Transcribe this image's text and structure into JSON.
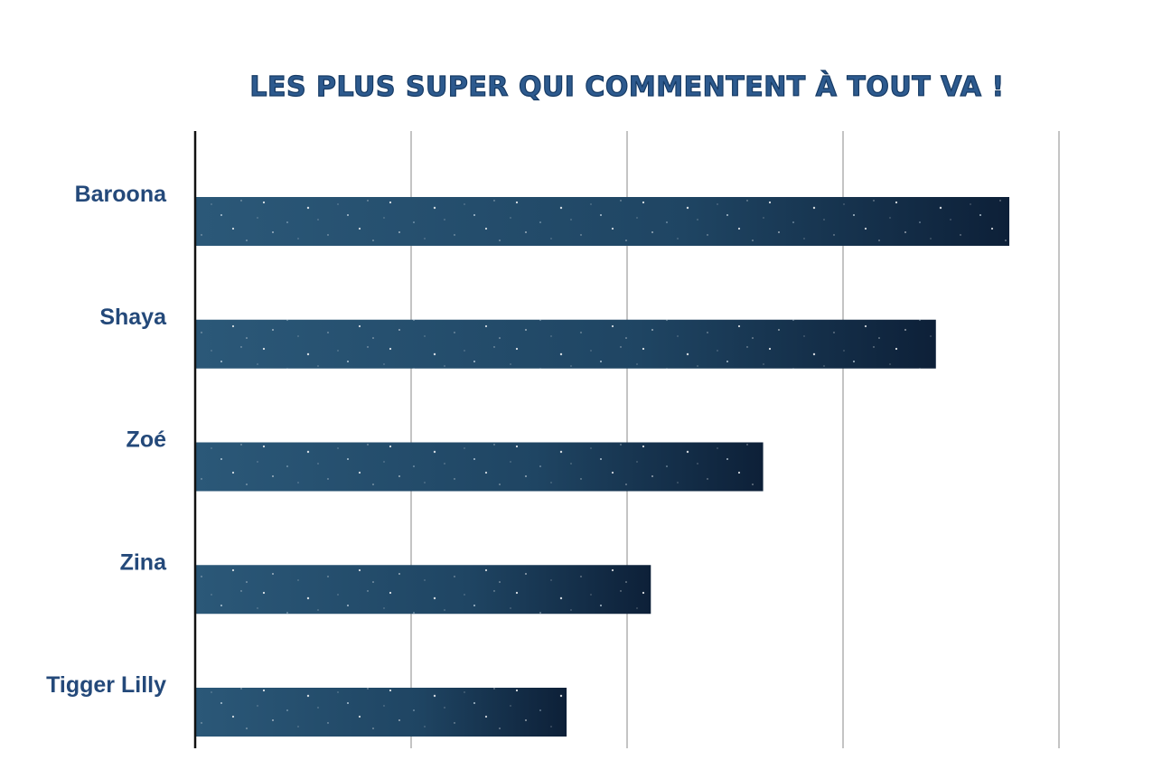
{
  "chart_data": {
    "type": "bar",
    "orientation": "horizontal",
    "title": "LES PLUS SUPER QUI COMMENTENT À TOUT VA !",
    "xlabel": "",
    "ylabel": "",
    "categories": [
      "Baroona",
      "Shaya",
      "Zoé",
      "Zina",
      "Tigger Lilly"
    ],
    "values": [
      377,
      343,
      263,
      211,
      172
    ],
    "xlim": [
      0,
      400
    ],
    "gridlines_x": [
      100,
      200,
      300,
      400
    ],
    "grid": true,
    "tick_labels_shown": false,
    "legend": "none"
  },
  "colors": {
    "title_fill": "#2d5a8e",
    "title_stroke": "#163a64",
    "label": "#24497a",
    "bar_start": "#2b5878",
    "bar_end": "#0d2038",
    "grid": "#c4c4c4",
    "axis": "#111111"
  }
}
